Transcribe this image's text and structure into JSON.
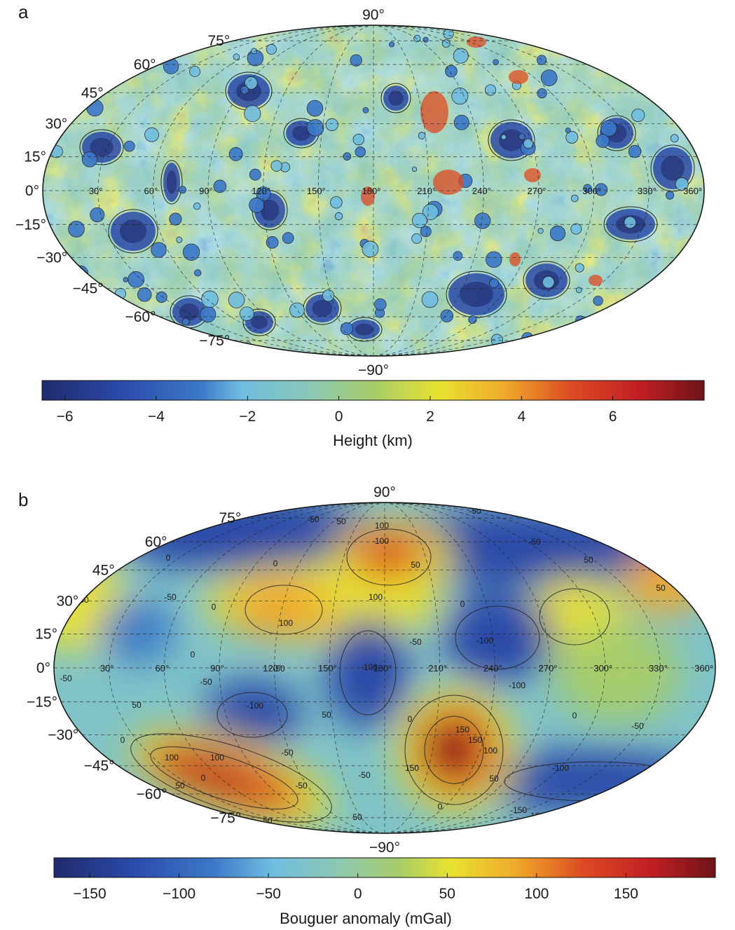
{
  "panels": [
    {
      "letter": "a",
      "lat_labels": [
        "90°",
        "75°",
        "60°",
        "45°",
        "30°",
        "15°",
        "0°",
        "−15°",
        "−30°",
        "−45°",
        "−60°",
        "−75°",
        "−90°"
      ],
      "lon_labels": [
        "30°",
        "60°",
        "90°",
        "120°",
        "150°",
        "180°",
        "210°",
        "240°",
        "270°",
        "300°",
        "330°",
        "360°"
      ],
      "colorbar": {
        "title": "Height (km)",
        "range": [
          -6.5,
          8
        ],
        "ticks": [
          {
            "v": -6,
            "t": "−6"
          },
          {
            "v": -4,
            "t": "−4"
          },
          {
            "v": -2,
            "t": "−2"
          },
          {
            "v": 0,
            "t": "0"
          },
          {
            "v": 2,
            "t": "2"
          },
          {
            "v": 4,
            "t": "4"
          },
          {
            "v": 6,
            "t": "6"
          }
        ]
      }
    },
    {
      "letter": "b",
      "lat_labels": [
        "90°",
        "75°",
        "60°",
        "45°",
        "30°",
        "15°",
        "0°",
        "−15°",
        "−30°",
        "−45°",
        "−60°",
        "−75°",
        "−90°"
      ],
      "lon_labels": [
        "30°",
        "60°",
        "90°",
        "120°",
        "150°",
        "180°",
        "210°",
        "240°",
        "270°",
        "300°",
        "330°",
        "360°"
      ],
      "contour_labels": [
        "-50",
        "50",
        "100",
        "0",
        "-100",
        "-50",
        "50",
        "0",
        "-50",
        "100",
        "0",
        "50",
        "-50",
        "100",
        "0",
        "50",
        "50",
        "0",
        "-100",
        "-50",
        "-100",
        "-50",
        "0",
        "-50",
        "-100",
        "-50",
        "50",
        "0",
        "-50",
        "-100",
        "-50",
        "50",
        "0",
        "150",
        "100",
        "150",
        "100",
        "50",
        "0",
        "-50",
        "50",
        "150",
        "-100",
        "-50",
        "100",
        "50",
        "0",
        "-50",
        "-100",
        "-150"
      ],
      "colorbar": {
        "title": "Bouguer anomaly (mGal)",
        "range": [
          -170,
          200
        ],
        "ticks": [
          {
            "v": -150,
            "t": "−150"
          },
          {
            "v": -100,
            "t": "−100"
          },
          {
            "v": -50,
            "t": "−50"
          },
          {
            "v": 0,
            "t": "0"
          },
          {
            "v": 50,
            "t": "50"
          },
          {
            "v": 100,
            "t": "100"
          },
          {
            "v": 150,
            "t": "150"
          }
        ]
      }
    }
  ],
  "colors": {
    "scale": [
      "#1f2a6e",
      "#2a4aa8",
      "#3b78c8",
      "#6fbde0",
      "#8ac7b8",
      "#a6cc6a",
      "#e8e22e",
      "#f0a82a",
      "#dd4a22",
      "#c21f24",
      "#6e1418"
    ]
  }
}
